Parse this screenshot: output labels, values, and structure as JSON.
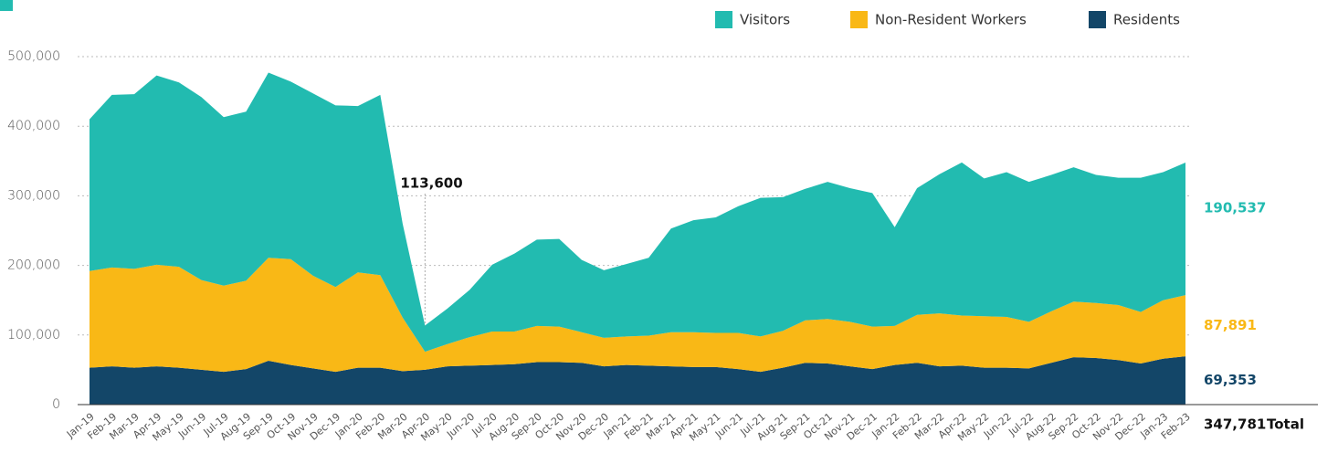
{
  "chart_data": {
    "type": "stacked_area",
    "categories": [
      "Jan-19",
      "Feb-19",
      "Mar-19",
      "Apr-19",
      "May-19",
      "Jun-19",
      "Jul-19",
      "Aug-19",
      "Sep-19",
      "Oct-19",
      "Nov-19",
      "Dec-19",
      "Jan-20",
      "Feb-20",
      "Mar-20",
      "Apr-20",
      "May-20",
      "Jun-20",
      "Jul-20",
      "Aug-20",
      "Sep-20",
      "Oct-20",
      "Nov-20",
      "Dec-20",
      "Jan-21",
      "Feb-21",
      "Mar-21",
      "Apr-21",
      "May-21",
      "Jun-21",
      "Jul-21",
      "Aug-21",
      "Sep-21",
      "Oct-21",
      "Nov-21",
      "Dec-21",
      "Jan-22",
      "Feb-22",
      "Mar-22",
      "Apr-22",
      "May-22",
      "Jun-22",
      "Jul-22",
      "Aug-22",
      "Sep-22",
      "Oct-22",
      "Nov-22",
      "Dec-22",
      "Jan-23",
      "Feb-23"
    ],
    "series": [
      {
        "name": "Visitors",
        "color": "#22bbb0",
        "end_value": 190537,
        "end_label": "190,537",
        "values": [
          218000,
          248000,
          251000,
          272000,
          265000,
          263000,
          242000,
          243000,
          266000,
          255000,
          262000,
          261000,
          239000,
          259000,
          135000,
          37600,
          51000,
          68000,
          96000,
          112000,
          124000,
          126000,
          104000,
          97000,
          104000,
          112000,
          149000,
          161000,
          166000,
          182000,
          199000,
          192000,
          189000,
          197000,
          192000,
          192000,
          142000,
          182000,
          200000,
          220000,
          198000,
          208000,
          201000,
          196000,
          193000,
          184000,
          183000,
          193000,
          184000,
          190537
        ]
      },
      {
        "name": "Non-Resident Workers",
        "color": "#f9b816",
        "end_value": 87891,
        "end_label": "87,891",
        "values": [
          139000,
          142000,
          142000,
          146000,
          145000,
          129000,
          124000,
          127000,
          148000,
          152000,
          133000,
          122000,
          137000,
          133000,
          77000,
          26000,
          32000,
          41000,
          48000,
          47000,
          52000,
          51000,
          44000,
          41000,
          41000,
          43000,
          49000,
          50000,
          49000,
          52000,
          51000,
          53000,
          61000,
          64000,
          64000,
          61000,
          56000,
          69000,
          76000,
          72000,
          74000,
          73000,
          67000,
          74000,
          80000,
          79000,
          79000,
          74000,
          84000,
          87891
        ]
      },
      {
        "name": "Residents",
        "color": "#134668",
        "end_value": 69353,
        "end_label": "69,353",
        "values": [
          53000,
          55000,
          53000,
          55000,
          53000,
          50000,
          47000,
          51000,
          63000,
          57000,
          52000,
          47000,
          53000,
          53000,
          48000,
          50000,
          55000,
          56000,
          57000,
          58000,
          61000,
          61000,
          60000,
          55000,
          57000,
          56000,
          55000,
          54000,
          54000,
          51000,
          47000,
          53000,
          60000,
          59000,
          55000,
          51000,
          57000,
          60000,
          55000,
          56000,
          53000,
          53000,
          52000,
          60000,
          68000,
          67000,
          64000,
          59000,
          66000,
          69353
        ]
      }
    ],
    "ylim": [
      0,
      500000
    ],
    "yticks": [
      0,
      {
        "value": 100000,
        "label": "100,000"
      },
      {
        "value": 200000,
        "label": "200,000"
      },
      {
        "value": 300000,
        "label": "300,000"
      },
      {
        "value": 400000,
        "label": "400,000"
      },
      {
        "value": 500000,
        "label": "500,000"
      }
    ],
    "grid": true,
    "legend": "top-right",
    "annotation": {
      "category": "Apr-20",
      "value": 113600,
      "label": "113,600"
    },
    "total": {
      "value": 347781,
      "label": "347,781",
      "text": "Total"
    }
  }
}
